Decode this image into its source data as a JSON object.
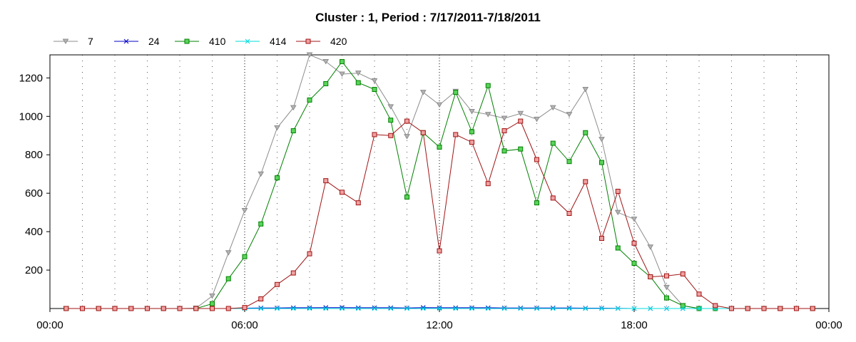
{
  "chart_data": {
    "type": "line",
    "title": "Cluster : 1, Period : 7/17/2011-7/18/2011",
    "xlabel": "",
    "ylabel": "",
    "x_range": [
      "00:00",
      "24:00"
    ],
    "ylim": [
      0,
      1320
    ],
    "x_ticks": [
      {
        "label": "00:00",
        "hour": 0
      },
      {
        "label": "06:00",
        "hour": 6
      },
      {
        "label": "12:00",
        "hour": 12
      },
      {
        "label": "18:00",
        "hour": 18
      },
      {
        "label": "00:00",
        "hour": 24
      }
    ],
    "y_ticks": [
      200,
      400,
      600,
      800,
      1000,
      1200
    ],
    "grid": {
      "vertical_dotted_hourly": true,
      "horizontal": false
    },
    "legend_position": "top-left",
    "x_hours": [
      0.5,
      1,
      1.5,
      2,
      2.5,
      3,
      3.5,
      4,
      4.5,
      5,
      5.5,
      6,
      6.5,
      7,
      7.5,
      8,
      8.5,
      9,
      9.5,
      10,
      10.5,
      11,
      11.5,
      12,
      12.5,
      13,
      13.5,
      14,
      14.5,
      15,
      15.5,
      16,
      16.5,
      17,
      17.5,
      18,
      18.5,
      19,
      19.5,
      20,
      20.5,
      21,
      21.5,
      22,
      22.5,
      23,
      23.5
    ],
    "series": [
      {
        "name": "7",
        "color": "#8c8c8c",
        "marker": "triangle-down",
        "values": [
          0,
          0,
          0,
          0,
          0,
          0,
          0,
          0,
          2,
          65,
          290,
          510,
          700,
          940,
          1045,
          1320,
          1285,
          1220,
          1225,
          1185,
          1050,
          895,
          1125,
          1060,
          1130,
          1025,
          1010,
          990,
          1015,
          985,
          1045,
          1010,
          1140,
          880,
          500,
          465,
          320,
          110,
          15,
          0,
          0,
          0,
          0,
          0,
          0,
          0,
          0
        ]
      },
      {
        "name": "24",
        "color": "#0000c8",
        "marker": "x",
        "values": [
          0,
          0,
          0,
          0,
          0,
          0,
          0,
          0,
          0,
          0,
          0,
          2,
          3,
          3,
          4,
          4,
          5,
          5,
          4,
          4,
          4,
          3,
          5,
          4,
          4,
          4,
          4,
          3,
          3,
          3,
          3,
          3,
          2,
          2,
          1,
          0,
          0,
          0,
          0,
          0,
          0,
          0,
          0,
          0,
          0,
          0,
          0
        ]
      },
      {
        "name": "410",
        "color": "#008000",
        "marker": "square",
        "marker_fill": "#5ad35a",
        "values": [
          0,
          0,
          0,
          0,
          0,
          0,
          0,
          0,
          0,
          25,
          155,
          270,
          440,
          680,
          925,
          1085,
          1170,
          1285,
          1175,
          1140,
          980,
          580,
          915,
          840,
          1125,
          920,
          1160,
          820,
          830,
          550,
          860,
          765,
          915,
          760,
          315,
          235,
          165,
          55,
          15,
          0,
          0,
          0,
          0,
          0,
          0,
          0,
          0
        ]
      },
      {
        "name": "414",
        "color": "#00dcdc",
        "marker": "x",
        "values": [
          0,
          0,
          0,
          0,
          0,
          0,
          0,
          0,
          0,
          0,
          0,
          0,
          0,
          0,
          0,
          0,
          0,
          0,
          0,
          0,
          0,
          0,
          0,
          0,
          0,
          0,
          0,
          0,
          0,
          0,
          0,
          0,
          0,
          0,
          0,
          0,
          0,
          0,
          0,
          0,
          0,
          0,
          0,
          0,
          0,
          0,
          0
        ]
      },
      {
        "name": "420",
        "color": "#a01414",
        "marker": "square",
        "marker_fill": "#f0a0a0",
        "values": [
          0,
          0,
          0,
          0,
          0,
          0,
          0,
          0,
          0,
          0,
          0,
          5,
          50,
          125,
          185,
          285,
          665,
          605,
          550,
          905,
          900,
          975,
          915,
          300,
          905,
          865,
          650,
          925,
          975,
          775,
          575,
          495,
          660,
          365,
          610,
          340,
          165,
          170,
          180,
          75,
          15,
          0,
          0,
          0,
          0,
          0,
          0
        ]
      }
    ]
  }
}
